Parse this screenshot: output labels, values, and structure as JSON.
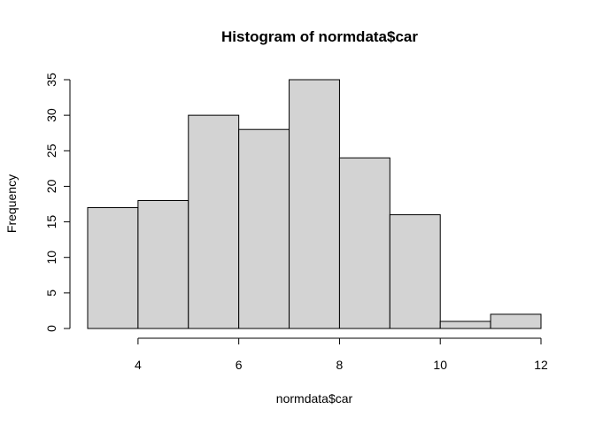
{
  "chart_data": {
    "type": "bar",
    "title": "Histogram of normdata$car",
    "xlabel": "normdata$car",
    "ylabel": "Frequency",
    "bin_edges": [
      3,
      4,
      5,
      6,
      7,
      8,
      9,
      10,
      11,
      12
    ],
    "values": [
      17,
      18,
      30,
      28,
      35,
      24,
      16,
      1,
      2
    ],
    "xlim": [
      3,
      12
    ],
    "ylim": [
      0,
      35
    ],
    "x_ticks": [
      "4",
      "6",
      "8",
      "10",
      "12"
    ],
    "y_ticks": [
      "0",
      "5",
      "10",
      "15",
      "20",
      "25",
      "30",
      "35"
    ],
    "bar_fill": "#d3d3d3",
    "bar_stroke": "#000000",
    "grid": false,
    "legend": "none"
  }
}
